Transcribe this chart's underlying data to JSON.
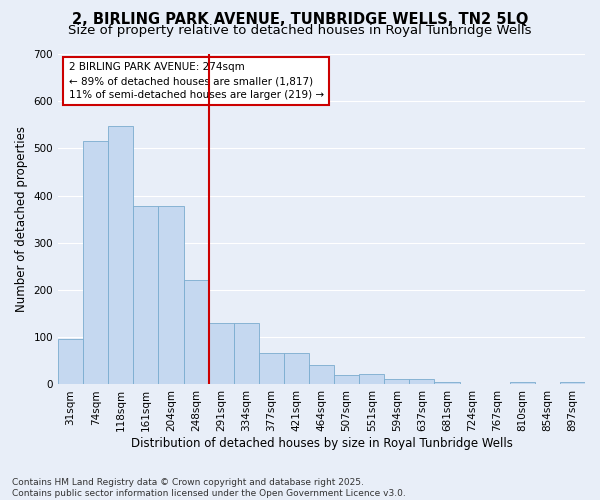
{
  "title": "2, BIRLING PARK AVENUE, TUNBRIDGE WELLS, TN2 5LQ",
  "subtitle": "Size of property relative to detached houses in Royal Tunbridge Wells",
  "xlabel": "Distribution of detached houses by size in Royal Tunbridge Wells",
  "ylabel": "Number of detached properties",
  "categories": [
    "31sqm",
    "74sqm",
    "118sqm",
    "161sqm",
    "204sqm",
    "248sqm",
    "291sqm",
    "334sqm",
    "377sqm",
    "421sqm",
    "464sqm",
    "507sqm",
    "551sqm",
    "594sqm",
    "637sqm",
    "681sqm",
    "724sqm",
    "767sqm",
    "810sqm",
    "854sqm",
    "897sqm"
  ],
  "values": [
    97,
    515,
    548,
    378,
    377,
    222,
    130,
    130,
    67,
    67,
    42,
    20,
    22,
    12,
    12,
    6,
    0,
    0,
    5,
    0,
    5
  ],
  "bar_color": "#c5d8f0",
  "bar_edge_color": "#7aaccf",
  "vline_color": "#cc0000",
  "annotation_line1": "2 BIRLING PARK AVENUE: 274sqm",
  "annotation_line2": "← 89% of detached houses are smaller (1,817)",
  "annotation_line3": "11% of semi-detached houses are larger (219) →",
  "annotation_box_color": "#cc0000",
  "ylim": [
    0,
    700
  ],
  "yticks": [
    0,
    100,
    200,
    300,
    400,
    500,
    600,
    700
  ],
  "background_color": "#e8eef8",
  "grid_color": "#ffffff",
  "footer": "Contains HM Land Registry data © Crown copyright and database right 2025.\nContains public sector information licensed under the Open Government Licence v3.0.",
  "title_fontsize": 10.5,
  "subtitle_fontsize": 9.5,
  "axis_fontsize": 8.5,
  "tick_fontsize": 7.5,
  "footer_fontsize": 6.5
}
